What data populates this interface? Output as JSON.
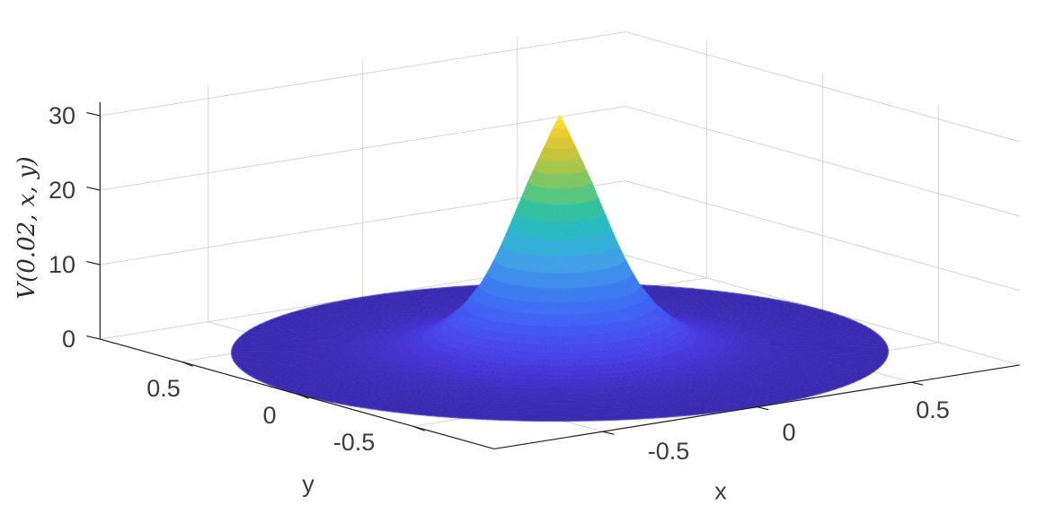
{
  "chart_data": {
    "type": "surface",
    "title": "",
    "zlabel": "V(0.02, x, y)",
    "xlabel": "x",
    "ylabel": "y",
    "x_ticks": [
      "-0.5",
      "0",
      "0.5"
    ],
    "y_ticks": [
      "0.5",
      "0",
      "-0.5"
    ],
    "z_ticks": [
      "0",
      "10",
      "20",
      "30"
    ],
    "x_tick_values": [
      -0.5,
      0,
      0.5
    ],
    "y_tick_values": [
      0.5,
      0,
      -0.5
    ],
    "z_tick_values": [
      0,
      10,
      20,
      30
    ],
    "xlim": [
      -0.85,
      0.85
    ],
    "ylim": [
      -0.85,
      0.85
    ],
    "zlim": [
      0,
      31.83
    ],
    "time": 0.02,
    "peak_value": 31.8,
    "domain_radius": 0.85,
    "grid": true,
    "legend": "none",
    "view": {
      "azimuth": -37.5,
      "elevation": 30
    },
    "surface_profile": {
      "description": "radially symmetric peak: V depends only on r = sqrt(x^2+y^2), flat ~0 disk out to r=0.85",
      "r": [
        0,
        0.04,
        0.08,
        0.12,
        0.16,
        0.2,
        0.25,
        0.3,
        0.36,
        0.44,
        0.55,
        0.7,
        0.85
      ],
      "V": [
        31.8,
        27.5,
        23.0,
        18.0,
        13.2,
        9.3,
        6.0,
        3.7,
        2.0,
        0.9,
        0.3,
        0.05,
        0.0
      ]
    },
    "colormap": {
      "name": "parula",
      "stops": [
        [
          0.0,
          "#392bb0"
        ],
        [
          0.035,
          "#4533d2"
        ],
        [
          0.1,
          "#4843ea"
        ],
        [
          0.17,
          "#4456f2"
        ],
        [
          0.25,
          "#3f6cf4"
        ],
        [
          0.34,
          "#3e88ee"
        ],
        [
          0.43,
          "#41a4e4"
        ],
        [
          0.52,
          "#2fb7d3"
        ],
        [
          0.6,
          "#27c1ae"
        ],
        [
          0.68,
          "#52c688"
        ],
        [
          0.76,
          "#8cc75c"
        ],
        [
          0.84,
          "#c4c43c"
        ],
        [
          0.92,
          "#e9c832"
        ],
        [
          1.0,
          "#f8e83a"
        ]
      ]
    },
    "colors": {
      "background": "#ffffff",
      "grid": "#d9d9d9",
      "axis": "#1f1f1f",
      "text": "#3c3c3c"
    }
  }
}
